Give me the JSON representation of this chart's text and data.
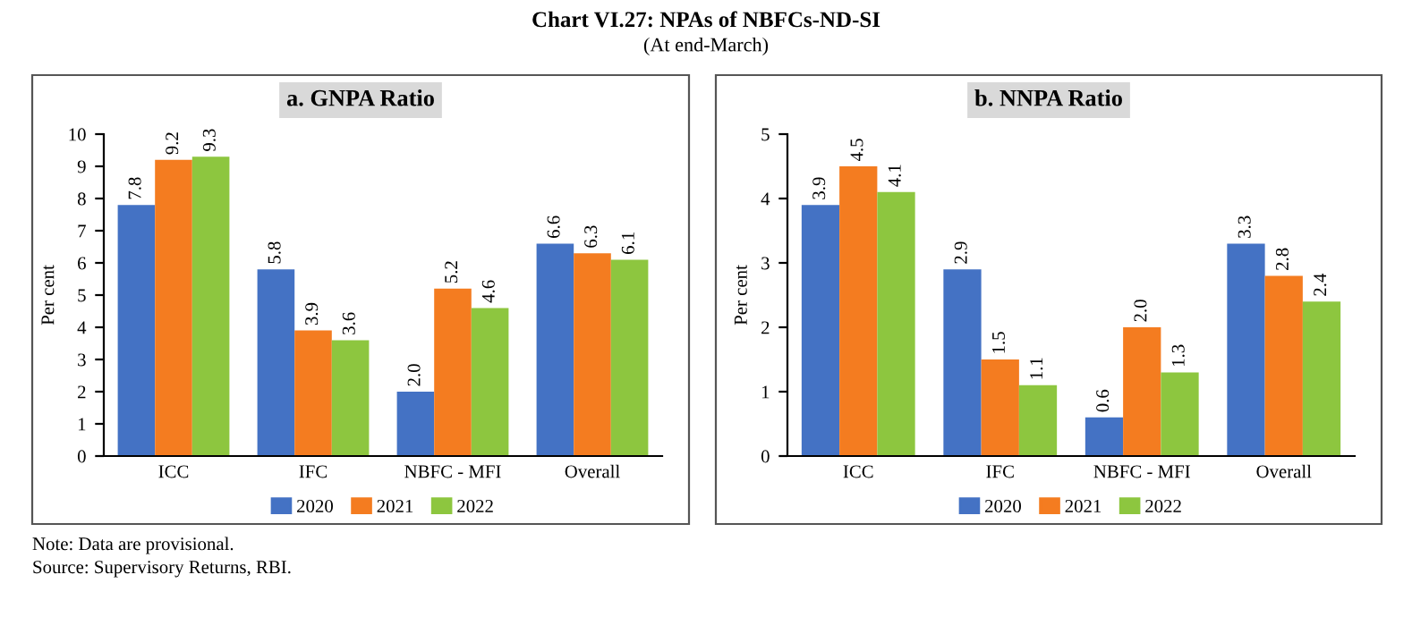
{
  "chart_data": [
    {
      "type": "bar",
      "title": "a. GNPA Ratio",
      "ylabel": "Per cent",
      "categories": [
        "ICC",
        "IFC",
        "NBFC - MFI",
        "Overall"
      ],
      "series": [
        {
          "name": "2020",
          "color": "#4472c4",
          "values": [
            7.8,
            5.8,
            2.0,
            6.6
          ],
          "value_labels": [
            "7.8",
            "5.8",
            "2.0",
            "6.6"
          ]
        },
        {
          "name": "2021",
          "color": "#f47c20",
          "values": [
            9.2,
            3.9,
            5.2,
            6.3
          ],
          "value_labels": [
            "9.2",
            "3.9",
            "5.2",
            "6.3"
          ]
        },
        {
          "name": "2022",
          "color": "#8dc63f",
          "values": [
            9.3,
            3.6,
            4.6,
            6.1
          ],
          "value_labels": [
            "9.3",
            "3.6",
            "4.6",
            "6.1"
          ]
        }
      ],
      "ylim": [
        0,
        10
      ],
      "yticks": [
        0,
        1,
        2,
        3,
        4,
        5,
        6,
        7,
        8,
        9,
        10
      ],
      "legend": "bottom",
      "annotations": [
        "Chart VI.27: NPAs of NBFCs-ND-SI",
        "(At end-March)"
      ]
    },
    {
      "type": "bar",
      "title": "b. NNPA Ratio",
      "ylabel": "Per cent",
      "categories": [
        "ICC",
        "IFC",
        "NBFC - MFI",
        "Overall"
      ],
      "series": [
        {
          "name": "2020",
          "color": "#4472c4",
          "values": [
            3.9,
            2.9,
            0.6,
            3.3
          ],
          "value_labels": [
            "3.9",
            "2.9",
            "0.6",
            "3.3"
          ]
        },
        {
          "name": "2021",
          "color": "#f47c20",
          "values": [
            4.5,
            1.5,
            2.0,
            2.8
          ],
          "value_labels": [
            "4.5",
            "1.5",
            "2.0",
            "2.8"
          ]
        },
        {
          "name": "2022",
          "color": "#8dc63f",
          "values": [
            4.1,
            1.1,
            1.3,
            2.4
          ],
          "value_labels": [
            "4.1",
            "1.1",
            "1.3",
            "2.4"
          ]
        }
      ],
      "ylim": [
        0,
        5
      ],
      "yticks": [
        0,
        1,
        2,
        3,
        4,
        5
      ],
      "legend": "bottom",
      "annotations": [
        "Note: Data are provisional.",
        "Source: Supervisory Returns, RBI."
      ]
    }
  ]
}
